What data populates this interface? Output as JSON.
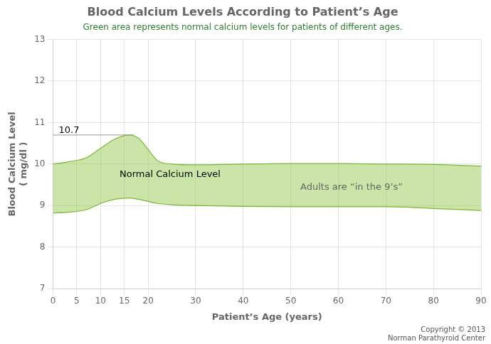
{
  "chart_data": {
    "type": "area",
    "title": "Blood Calcium Levels According to Patient’s Age",
    "subtitle": "Green area represents normal calcium levels for patients of different ages.",
    "subtitle_color": "#2e7d2e",
    "xlabel": "Patient’s Age (years)",
    "ylabel": [
      "Blood Calcium Level",
      "( mg/dl )"
    ],
    "xlim": [
      0,
      90
    ],
    "ylim": [
      7,
      13
    ],
    "xticks": [
      0,
      5,
      10,
      15,
      20,
      30,
      40,
      50,
      60,
      70,
      80,
      90
    ],
    "yticks": [
      7,
      8,
      9,
      10,
      11,
      12,
      13
    ],
    "grid": true,
    "legend": "none",
    "fill_color": "#8cc63f",
    "series": [
      {
        "color": "#7ab832",
        "x": [
          0,
          3,
          7,
          10,
          13,
          16,
          18,
          20,
          22,
          25,
          30,
          40,
          50,
          60,
          70,
          80,
          90
        ],
        "values": [
          8.82,
          8.84,
          8.9,
          9.05,
          9.15,
          9.18,
          9.15,
          9.1,
          9.05,
          9.02,
          9.0,
          8.98,
          8.97,
          8.97,
          8.97,
          8.93,
          8.88
        ]
      },
      {
        "color": "#7ab832",
        "x": [
          0,
          3,
          7,
          10,
          13,
          16,
          18,
          20,
          22,
          25,
          30,
          40,
          50,
          60,
          70,
          80,
          90
        ],
        "values": [
          10.0,
          10.05,
          10.15,
          10.38,
          10.6,
          10.7,
          10.62,
          10.35,
          10.08,
          10.0,
          9.98,
          10.0,
          10.01,
          10.01,
          10.0,
          9.99,
          9.95
        ]
      }
    ],
    "reference_line": {
      "x": [
        0,
        17
      ],
      "y": 10.7,
      "color": "#999999"
    },
    "annotations": [
      {
        "text": "10.7",
        "x": 1.2,
        "y": 10.72,
        "color": "#000000"
      },
      {
        "text": "Normal Calcium Level",
        "x": 14,
        "y": 9.65,
        "color": "#000000"
      },
      {
        "text": "Adults are “in the 9’s”",
        "x": 52,
        "y": 9.35,
        "color": "#666666"
      }
    ],
    "footnote": "Copyright © 2013\nNorman Parathyroid Center"
  }
}
